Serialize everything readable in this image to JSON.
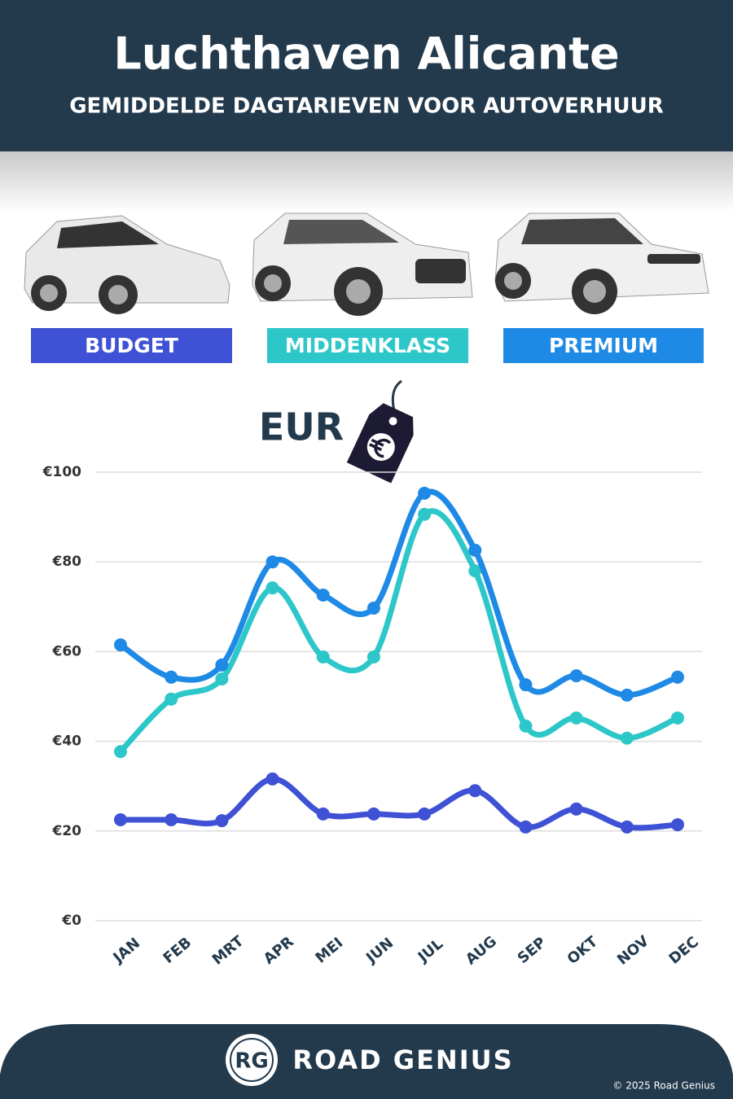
{
  "chart_data": {
    "type": "line",
    "title": "Luchthaven Alicante",
    "subtitle": "GEMIDDELDE DAGTARIEVEN VOOR AUTOVERHUUR",
    "currency_label": "EUR",
    "categories": [
      "JAN",
      "FEB",
      "MRT",
      "APR",
      "MEI",
      "JUN",
      "JUL",
      "AUG",
      "SEP",
      "OKT",
      "NOV",
      "DEC"
    ],
    "series": [
      {
        "name": "BUDGET",
        "color": "#3f51d4",
        "values": [
          22.5,
          22.5,
          22.3,
          31.6,
          23.8,
          23.8,
          23.8,
          29,
          20.9,
          24.9,
          20.9,
          21.4
        ]
      },
      {
        "name": "MIDDENKLASS",
        "color": "#2ec7c9",
        "values": [
          37.7,
          49.4,
          53.9,
          74.2,
          58.8,
          58.8,
          90.6,
          78,
          43.4,
          45.2,
          40.7,
          45.2
        ]
      },
      {
        "name": "PREMIUM",
        "color": "#1e8ae6",
        "values": [
          61.5,
          54.3,
          57,
          80,
          72.6,
          69.7,
          95.3,
          82.6,
          52.6,
          54.6,
          50.3,
          54.3
        ]
      }
    ],
    "ylim": [
      0,
      100
    ],
    "yticks": [
      {
        "value": 0,
        "label": "€0"
      },
      {
        "value": 20,
        "label": "€20"
      },
      {
        "value": 40,
        "label": "€40"
      },
      {
        "value": 60,
        "label": "€60"
      },
      {
        "value": 80,
        "label": "€80"
      },
      {
        "value": 100,
        "label": "€100"
      }
    ],
    "grid": true
  },
  "footer": {
    "logo": "RG",
    "brand": "ROAD GENIUS",
    "copyright": "© 2025 Road Genius"
  }
}
